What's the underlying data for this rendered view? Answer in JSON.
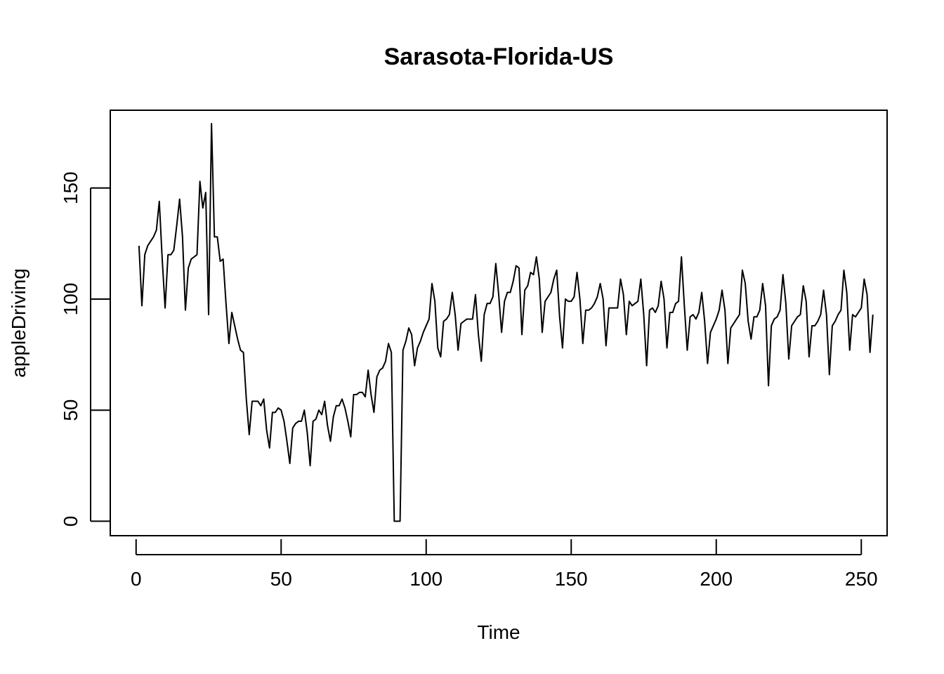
{
  "chart_data": {
    "type": "line",
    "title": "Sarasota-Florida-US",
    "xlabel": "Time",
    "ylabel": "appleDriving",
    "xlim": [
      -8.9,
      258.9
    ],
    "ylim": [
      -6.5,
      185.0
    ],
    "x_ticks": [
      0,
      50,
      100,
      150,
      200,
      250
    ],
    "y_ticks": [
      0,
      50,
      100,
      150
    ],
    "grid": false,
    "legend": "none",
    "colors": {
      "line": "#000000"
    },
    "series": [
      {
        "x_start": 1,
        "x_step": 1,
        "values": [
          124,
          97,
          120,
          124,
          126,
          128,
          131,
          144,
          118,
          96,
          120,
          120,
          122,
          133,
          145,
          128,
          95,
          114,
          118,
          119,
          120,
          153,
          141,
          148,
          93,
          179,
          128,
          128,
          117,
          118,
          98,
          80,
          94,
          88,
          82,
          77,
          76,
          55,
          39,
          54,
          54,
          54,
          52,
          55,
          41,
          33,
          49,
          49,
          51,
          50,
          45,
          36,
          26,
          42,
          44,
          45,
          45,
          50,
          40,
          25,
          45,
          46,
          50,
          48,
          54,
          43,
          36,
          47,
          52,
          52,
          55,
          51,
          45,
          38,
          57,
          57,
          58,
          58,
          56,
          68,
          57,
          49,
          65,
          68,
          69,
          72,
          80,
          76,
          0,
          0,
          0,
          77,
          81,
          87,
          84,
          70,
          78,
          81,
          85,
          88,
          91,
          107,
          99,
          78,
          74,
          90,
          91,
          93,
          103,
          93,
          77,
          89,
          90,
          91,
          91,
          91,
          102,
          84,
          72,
          93,
          98,
          98,
          101,
          116,
          102,
          85,
          99,
          103,
          103,
          108,
          115,
          114,
          84,
          104,
          106,
          112,
          111,
          119,
          109,
          85,
          99,
          101,
          103,
          109,
          113,
          92,
          78,
          100,
          99,
          99,
          101,
          112,
          100,
          80,
          95,
          95,
          96,
          98,
          101,
          107,
          100,
          79,
          96,
          96,
          96,
          96,
          109,
          102,
          84,
          99,
          97,
          98,
          99,
          109,
          93,
          70,
          95,
          96,
          94,
          97,
          108,
          100,
          78,
          94,
          94,
          98,
          99,
          119,
          97,
          77,
          92,
          93,
          91,
          94,
          103,
          90,
          71,
          85,
          88,
          91,
          95,
          104,
          95,
          71,
          87,
          89,
          91,
          93,
          113,
          107,
          90,
          82,
          92,
          92,
          95,
          107,
          97,
          61,
          88,
          91,
          92,
          95,
          111,
          98,
          73,
          88,
          90,
          92,
          93,
          106,
          99,
          74,
          88,
          88,
          90,
          93,
          104,
          93,
          66,
          88,
          90,
          93,
          95,
          113,
          103,
          77,
          93,
          92,
          94,
          96,
          109,
          102,
          76,
          93
        ]
      }
    ]
  }
}
